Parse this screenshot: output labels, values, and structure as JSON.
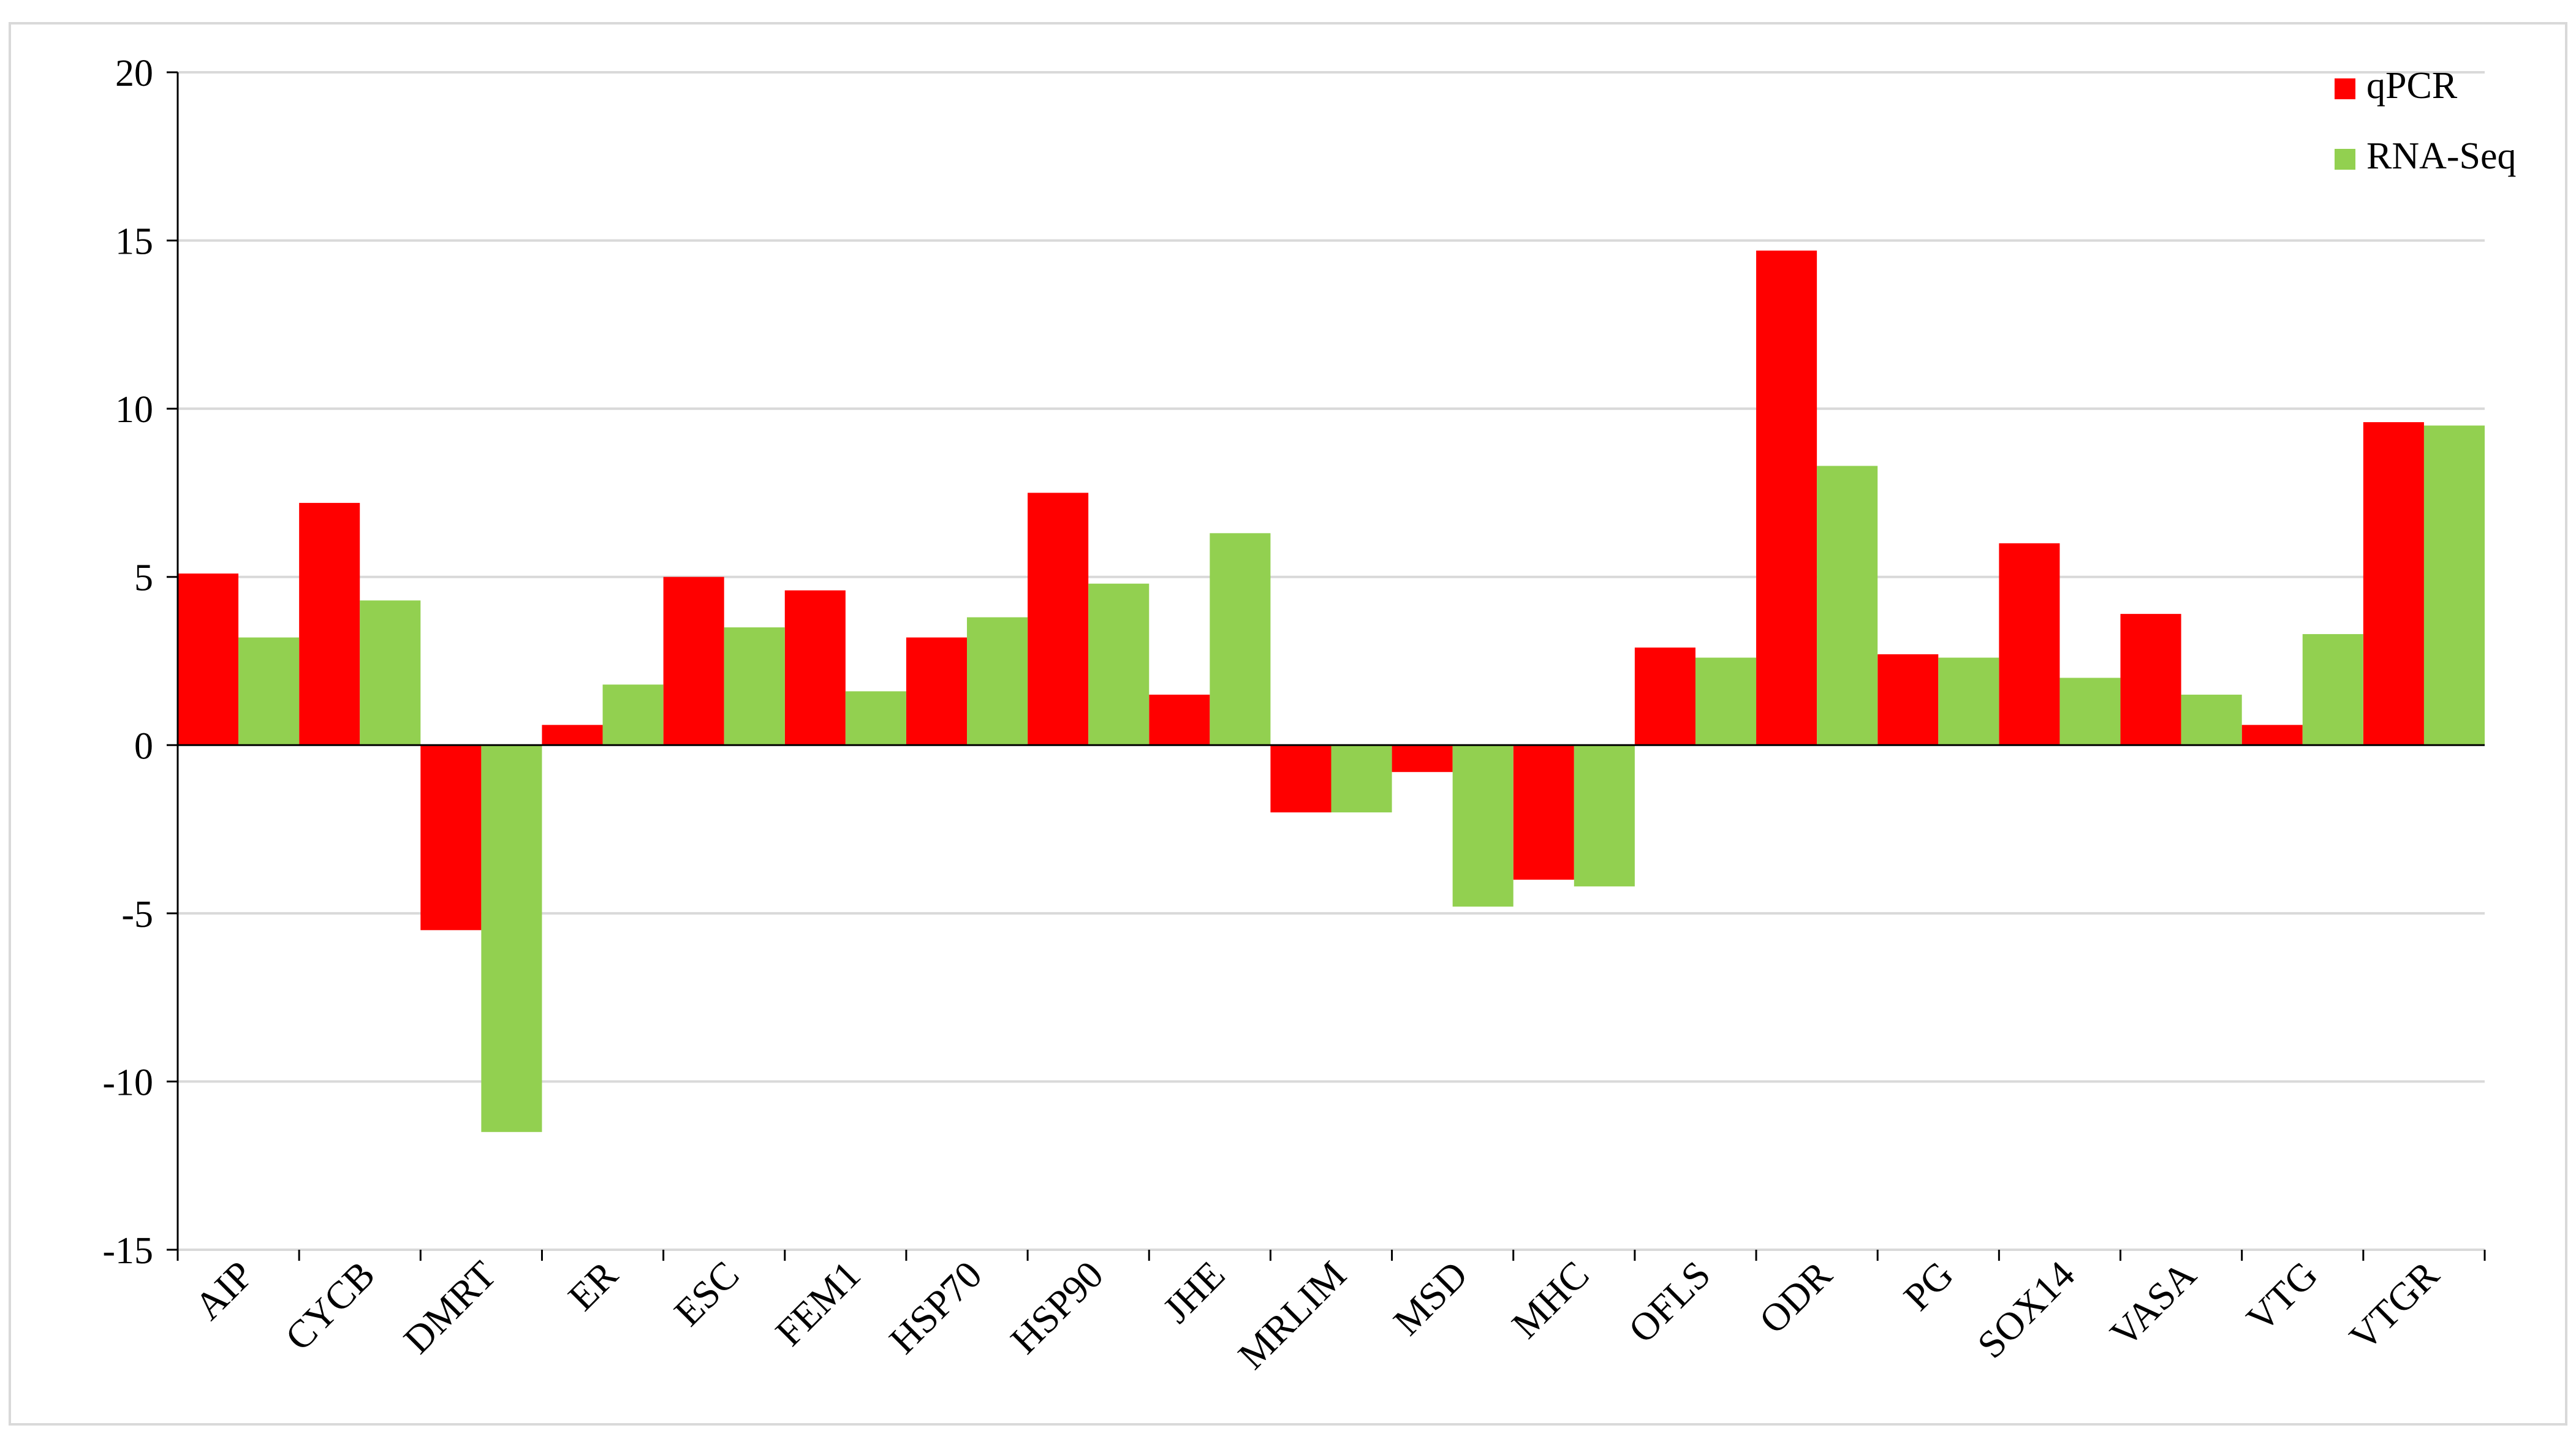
{
  "chart_data": {
    "type": "bar",
    "title": "",
    "xlabel": "",
    "ylabel": "",
    "ylim": [
      -15,
      20
    ],
    "yticks": [
      -15,
      -10,
      -5,
      0,
      5,
      10,
      15,
      20
    ],
    "grid": true,
    "legend_position": "top-right",
    "categories": [
      "AIP",
      "CYCB",
      "DMRT",
      "ER",
      "ESC",
      "FEM1",
      "HSP70",
      "HSP90",
      "JHE",
      "MRLIM",
      "MSD",
      "MHC",
      "OFLS",
      "ODR",
      "PG",
      "SOX14",
      "VASA",
      "VTG",
      "VTGR"
    ],
    "series": [
      {
        "name": "qPCR",
        "color": "#ff0000",
        "values": [
          5.1,
          7.2,
          -5.5,
          0.6,
          5.0,
          4.6,
          3.2,
          7.5,
          1.5,
          -2.0,
          -0.8,
          -4.0,
          2.9,
          14.7,
          2.7,
          6.0,
          3.9,
          0.6,
          9.6
        ]
      },
      {
        "name": "RNA-Seq",
        "color": "#92d050",
        "values": [
          3.2,
          4.3,
          -11.5,
          1.8,
          3.5,
          1.6,
          3.8,
          4.8,
          6.3,
          -2.0,
          -4.8,
          -4.2,
          2.6,
          8.3,
          2.6,
          2.0,
          1.5,
          3.3,
          9.5
        ]
      }
    ]
  }
}
